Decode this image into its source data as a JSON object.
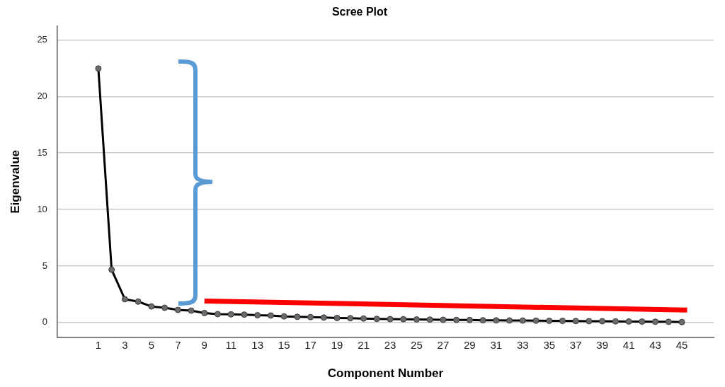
{
  "chart_data": {
    "type": "line",
    "title": "Scree Plot",
    "xlabel": "Component Number",
    "ylabel": "Eigenvalue",
    "x": [
      1,
      2,
      3,
      4,
      5,
      6,
      7,
      8,
      9,
      10,
      11,
      12,
      13,
      14,
      15,
      16,
      17,
      18,
      19,
      20,
      21,
      22,
      23,
      24,
      25,
      26,
      27,
      28,
      29,
      30,
      31,
      32,
      33,
      34,
      35,
      36,
      37,
      38,
      39,
      40,
      41,
      42,
      43,
      44,
      45
    ],
    "series": [
      {
        "color": "#000000",
        "marker": "circle",
        "values": [
          22.47,
          4.67,
          2.06,
          1.85,
          1.42,
          1.3,
          1.11,
          1.05,
          0.84,
          0.74,
          0.72,
          0.7,
          0.64,
          0.62,
          0.54,
          0.5,
          0.48,
          0.44,
          0.4,
          0.38,
          0.35,
          0.32,
          0.3,
          0.29,
          0.27,
          0.26,
          0.24,
          0.23,
          0.22,
          0.2,
          0.19,
          0.18,
          0.17,
          0.16,
          0.15,
          0.14,
          0.13,
          0.12,
          0.11,
          0.1,
          0.09,
          0.08,
          0.07,
          0.06,
          0.04
        ]
      },
      {
        "type": "line",
        "color": "#ff0000",
        "marker": "none",
        "x": [
          9,
          45.4
        ],
        "values": [
          1.9,
          1.1
        ]
      }
    ],
    "xlim": [
      -2.1,
      47.4
    ],
    "xticks": [
      1,
      3,
      5,
      7,
      9,
      11,
      13,
      15,
      17,
      19,
      21,
      23,
      25,
      27,
      29,
      31,
      33,
      35,
      37,
      39,
      41,
      43,
      45
    ],
    "ylim": [
      -1.3,
      26.2
    ],
    "yticks": [
      0,
      5,
      10,
      15,
      20,
      25
    ],
    "grid": "y",
    "legend": false,
    "line_style": "solid"
  }
}
